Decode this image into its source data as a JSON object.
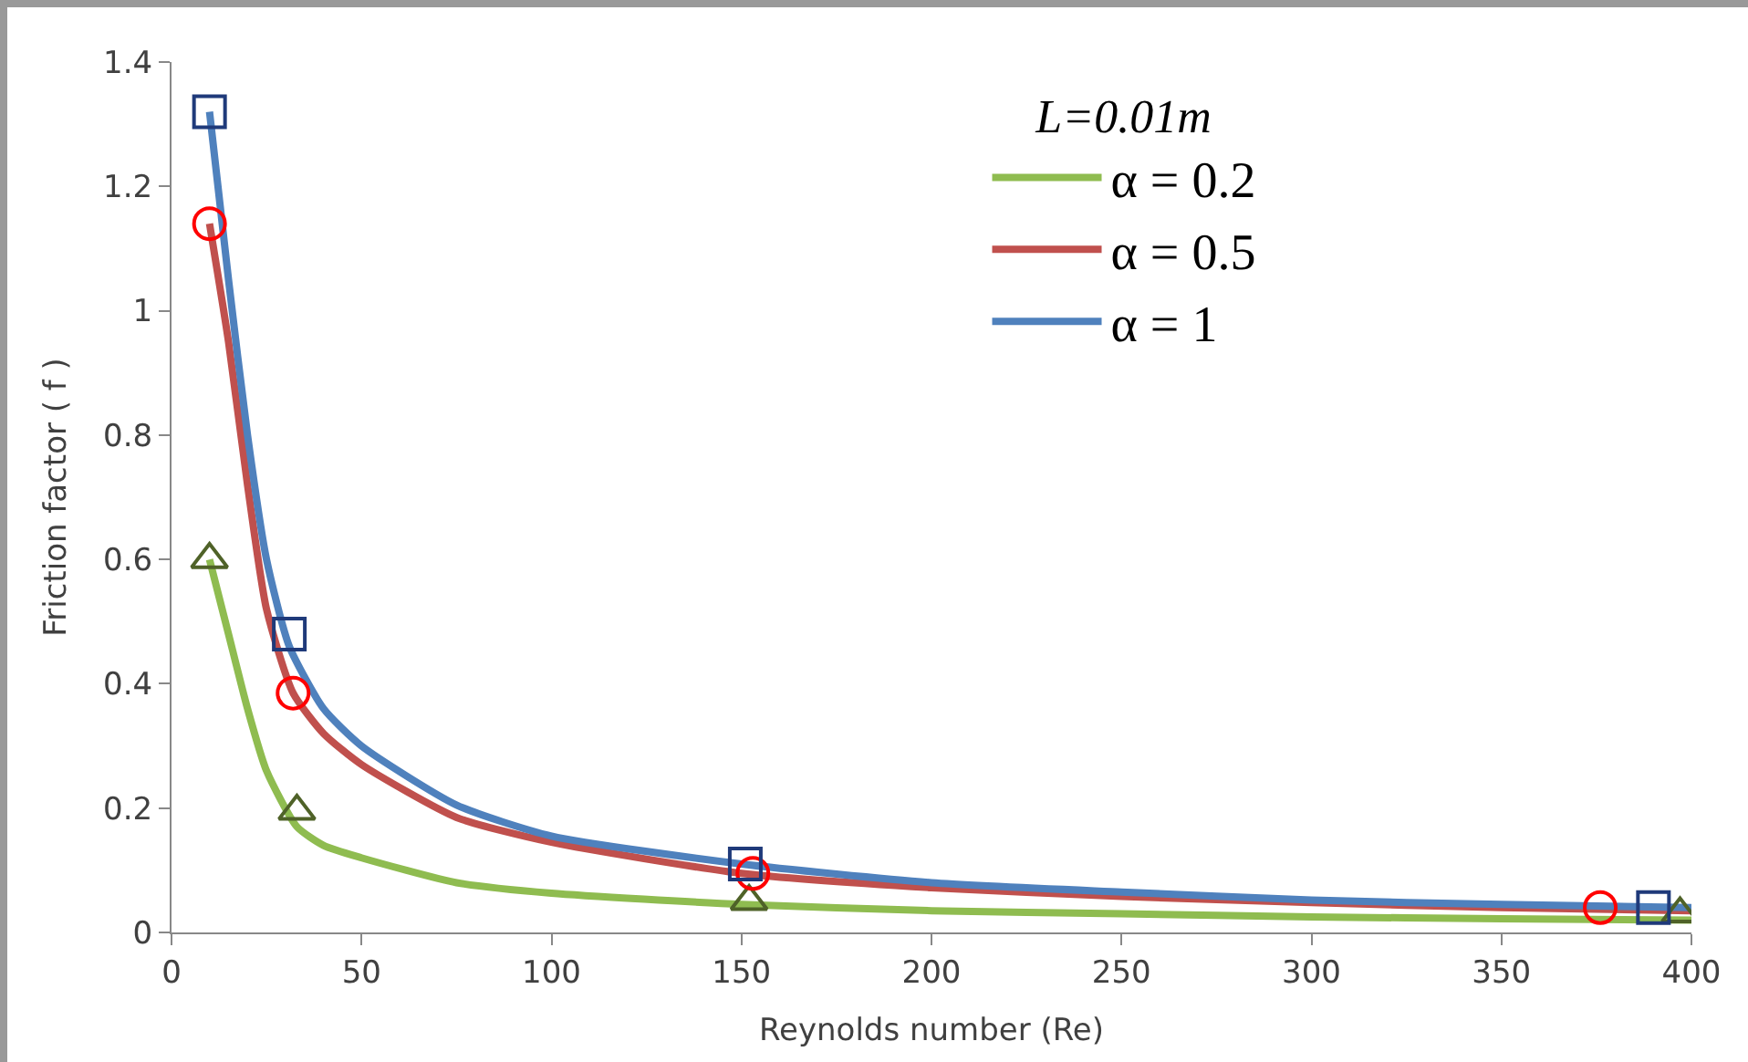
{
  "chart_data": {
    "type": "line",
    "xlabel": "Reynolds number (Re)",
    "ylabel": "Friction factor ( f )",
    "legend_title": "L=0.01m",
    "xlim": [
      0,
      400
    ],
    "xticks": [
      0,
      50,
      100,
      150,
      200,
      250,
      300,
      350,
      400
    ],
    "ylim": [
      0,
      1.4
    ],
    "yticks": [
      0,
      0.2,
      0.4,
      0.6,
      0.8,
      1,
      1.2,
      1.4
    ],
    "grid": false,
    "legend": "top right",
    "series": [
      {
        "name": "α = 0.2",
        "color": "#8fbc50",
        "x": [
          10,
          15,
          20,
          25,
          33,
          40,
          50,
          75,
          100,
          150,
          200,
          250,
          300,
          350,
          400
        ],
        "values": [
          0.6,
          0.48,
          0.36,
          0.26,
          0.17,
          0.14,
          0.12,
          0.08,
          0.063,
          0.045,
          0.035,
          0.03,
          0.025,
          0.022,
          0.02
        ]
      },
      {
        "name": "α = 0.5",
        "color": "#c0504d",
        "x": [
          10,
          15,
          20,
          25,
          32,
          40,
          50,
          75,
          100,
          150,
          200,
          250,
          300,
          350,
          400
        ],
        "values": [
          1.14,
          0.95,
          0.72,
          0.52,
          0.385,
          0.32,
          0.27,
          0.185,
          0.145,
          0.095,
          0.072,
          0.058,
          0.048,
          0.04,
          0.035
        ]
      },
      {
        "name": "α = 1",
        "color": "#4f81bd",
        "x": [
          10,
          15,
          20,
          25,
          31,
          40,
          50,
          75,
          100,
          150,
          200,
          250,
          300,
          350,
          400
        ],
        "values": [
          1.32,
          1.05,
          0.8,
          0.6,
          0.46,
          0.36,
          0.3,
          0.205,
          0.155,
          0.11,
          0.08,
          0.065,
          0.052,
          0.045,
          0.04
        ]
      },
      {
        "type": "scatter",
        "marker": "triangle",
        "color": "#4f6228",
        "x": [
          10,
          33,
          152,
          397
        ],
        "values": [
          0.6,
          0.195,
          0.05,
          0.03
        ]
      },
      {
        "type": "scatter",
        "marker": "circle",
        "color": "#ff0000",
        "x": [
          10,
          32,
          153,
          376
        ],
        "values": [
          1.14,
          0.385,
          0.095,
          0.04
        ]
      },
      {
        "type": "scatter",
        "marker": "square",
        "color": "#1f3a7a",
        "x": [
          10,
          31,
          151,
          390
        ],
        "values": [
          1.32,
          0.48,
          0.11,
          0.04
        ]
      }
    ]
  }
}
